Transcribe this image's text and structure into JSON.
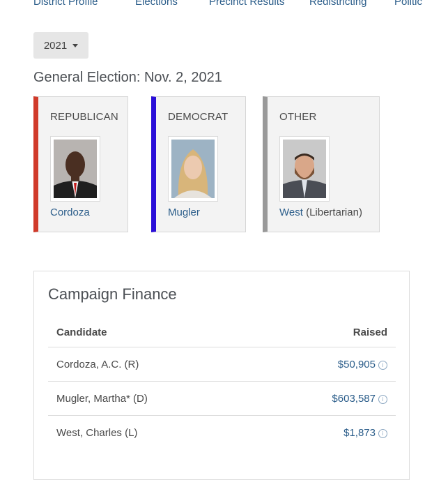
{
  "nav": {
    "items": [
      "District Profile",
      "Elections",
      "Precinct Results",
      "Redistricting",
      "Politic"
    ]
  },
  "year_select": {
    "value": "2021"
  },
  "election_title": "General Election: Nov. 2, 2021",
  "parties": [
    {
      "label": "REPUBLICAN",
      "color": "#d03a2a",
      "candidate": "Cordoza",
      "affiliation": ""
    },
    {
      "label": "DEMOCRAT",
      "color": "#2a0fd8",
      "candidate": "Mugler",
      "affiliation": ""
    },
    {
      "label": "OTHER",
      "color": "#999999",
      "candidate": "West",
      "affiliation": "(Libertarian)"
    }
  ],
  "finance": {
    "title": "Campaign Finance",
    "headers": {
      "candidate": "Candidate",
      "raised": "Raised"
    },
    "rows": [
      {
        "name": "Cordoza, A.C. (R)",
        "raised": "$50,905"
      },
      {
        "name": "Mugler, Martha* (D)",
        "raised": "$603,587"
      },
      {
        "name": "West, Charles (L)",
        "raised": "$1,873"
      }
    ]
  }
}
